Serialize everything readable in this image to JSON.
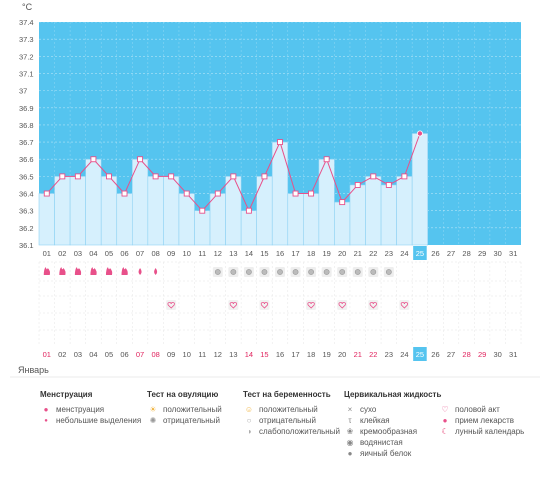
{
  "unit_label": "°C",
  "month": "Январь",
  "colors": {
    "top_area": "#55c4ef",
    "bar_fill": "#d6f0fd",
    "bar_stroke": "#8fd2f3",
    "line": "#e8508a",
    "weekend": "#e0245e",
    "today": "#55c4ef",
    "grid_bg": "#f3f3f3"
  },
  "chart_data": {
    "type": "line",
    "title": "",
    "ylabel": "°C",
    "ylim": [
      36.1,
      37.4
    ],
    "yticks": [
      "37.4",
      "37.3",
      "37.2",
      "37.1",
      "37",
      "36.9",
      "36.8",
      "36.7",
      "36.6",
      "36.5",
      "36.4",
      "36.3",
      "36.2",
      "36.1"
    ],
    "x": [
      "01",
      "02",
      "03",
      "04",
      "05",
      "06",
      "07",
      "08",
      "09",
      "10",
      "11",
      "12",
      "13",
      "14",
      "15",
      "16",
      "17",
      "18",
      "19",
      "20",
      "21",
      "22",
      "23",
      "24",
      "25",
      "26",
      "27",
      "28",
      "29",
      "30",
      "31"
    ],
    "values": [
      36.4,
      36.5,
      36.5,
      36.6,
      36.5,
      36.4,
      36.6,
      36.5,
      36.5,
      36.4,
      36.3,
      36.4,
      36.5,
      36.3,
      36.5,
      36.7,
      36.4,
      36.4,
      36.6,
      36.35,
      36.45,
      36.5,
      36.45,
      36.5,
      36.75,
      null,
      null,
      null,
      null,
      null,
      null
    ],
    "today": "25",
    "bottom_highlight_days": [
      "01",
      "07",
      "08",
      "14",
      "15",
      "21",
      "22",
      "28",
      "29"
    ]
  },
  "rows": {
    "menstruation": [
      "flow",
      "flow",
      "flow",
      "flow",
      "flow",
      "flow",
      "spot",
      "spot"
    ],
    "ovulation_test_days": [
      12,
      13,
      14,
      15,
      16,
      17,
      18,
      19,
      20,
      21,
      22,
      23
    ],
    "intercourse_days": [
      9,
      13,
      15,
      18,
      20,
      22,
      24
    ]
  },
  "legend": {
    "menstruation": {
      "title": "Менструация",
      "items": [
        {
          "icon": "drop-icon",
          "label": "менструация"
        },
        {
          "icon": "small-drop-icon",
          "label": "небольшие выделения"
        }
      ]
    },
    "ovulation": {
      "title": "Тест на овуляцию",
      "items": [
        {
          "icon": "sun-icon",
          "label": "положительный"
        },
        {
          "icon": "gear-icon",
          "label": "отрицательный"
        }
      ]
    },
    "pregnancy": {
      "title": "Тест на беременность",
      "items": [
        {
          "icon": "face-icon",
          "label": "положительный"
        },
        {
          "icon": "circle-icon",
          "label": "отрицательный"
        },
        {
          "icon": "half-circle-icon",
          "label": "слабоположительный"
        }
      ]
    },
    "cervical": {
      "title": "Цервикальная жидкость",
      "items": [
        {
          "icon": "cross-icon",
          "label": "сухо"
        },
        {
          "icon": "t-icon",
          "label": "клейкая"
        },
        {
          "icon": "cream-icon",
          "label": "кремообразная"
        },
        {
          "icon": "water-icon",
          "label": "водянистая"
        },
        {
          "icon": "egg-white-icon",
          "label": "яичный белок"
        }
      ]
    },
    "other": {
      "items": [
        {
          "icon": "heart-icon",
          "label": "половой акт"
        },
        {
          "icon": "pill-icon",
          "label": "прием лекарств"
        },
        {
          "icon": "moon-icon",
          "label": "лунный календарь"
        }
      ]
    }
  }
}
